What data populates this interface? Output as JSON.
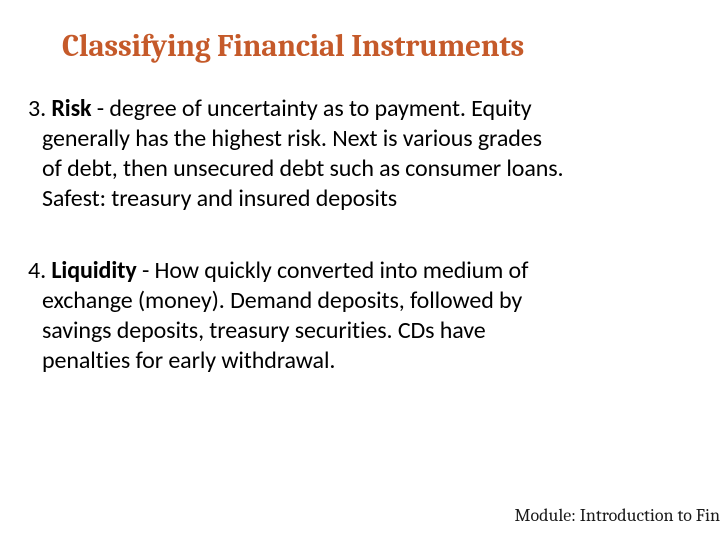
{
  "slide": {
    "title": "Classifying Financial Instruments",
    "title_color": "#c55a2a",
    "title_fontsize": 31,
    "title_font": "Cambria",
    "background_color": "#ffffff",
    "body_color": "#000000",
    "body_fontsize": 24,
    "items": [
      {
        "number": "3. ",
        "label": "Risk",
        "sep": " - ",
        "desc_line1": "degree of uncertainty as to payment. Equity",
        "desc_line2": "generally has the highest risk. Next is various  grades",
        "desc_line3": "of debt, then unsecured debt such as consumer loans.",
        "desc_line4": "Safest: treasury and insured deposits"
      },
      {
        "number": "4. ",
        "label": "Liquidity",
        "sep": " - ",
        "desc_line1": "How quickly converted into medium  of",
        "desc_line2": " exchange (money). Demand deposits, followed by",
        "desc_line3": "savings deposits, treasury securities. CDs have",
        "desc_line4": "penalties for early withdrawal."
      }
    ],
    "footer": "Module: Introduction to Fin",
    "footer_color": "#1a1a1a",
    "footer_fontsize": 18
  }
}
